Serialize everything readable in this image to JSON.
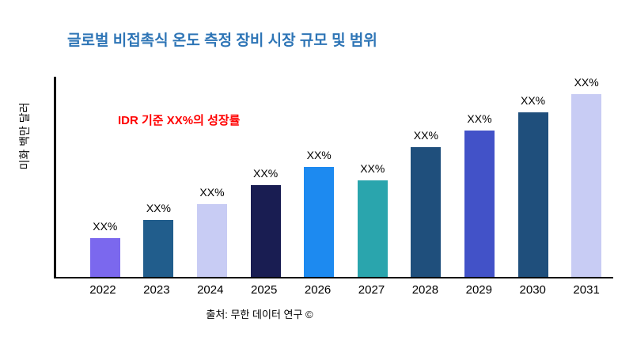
{
  "title": "글로벌 비접촉식 온도 측정 장비 시장 규모 및 범위",
  "annotation": "IDR 기준 XX%의 성장률",
  "source": "출처: 무한 데이터 연구 ©",
  "colors": {
    "background": "#ffffff",
    "title": "#2e75b6",
    "annotation": "#ff0000",
    "axis": "#000000"
  },
  "chart_data": {
    "type": "bar",
    "title": "글로벌 비접촉식 온도 측정 장비 시장 규모 및 범위",
    "xlabel": "",
    "ylabel": "미화 백만 달러",
    "categories": [
      "2022",
      "2023",
      "2024",
      "2025",
      "2026",
      "2027",
      "2028",
      "2029",
      "2030",
      "2031"
    ],
    "values": [
      21,
      31,
      40,
      50,
      60,
      53,
      71,
      80,
      90,
      100
    ],
    "bar_labels": [
      "XX%",
      "XX%",
      "XX%",
      "XX%",
      "XX%",
      "XX%",
      "XX%",
      "XX%",
      "XX%",
      "XX%"
    ],
    "bar_colors": [
      "#7b68ee",
      "#215d8c",
      "#c8ccf4",
      "#191d52",
      "#1d8af0",
      "#2aa5ad",
      "#1f4f7c",
      "#4252c8",
      "#1f4f7c",
      "#c8ccf4"
    ],
    "ylim": [
      0,
      100
    ],
    "grid": false,
    "legend": false,
    "annotation": "IDR 기준 XX%의 성장률"
  }
}
